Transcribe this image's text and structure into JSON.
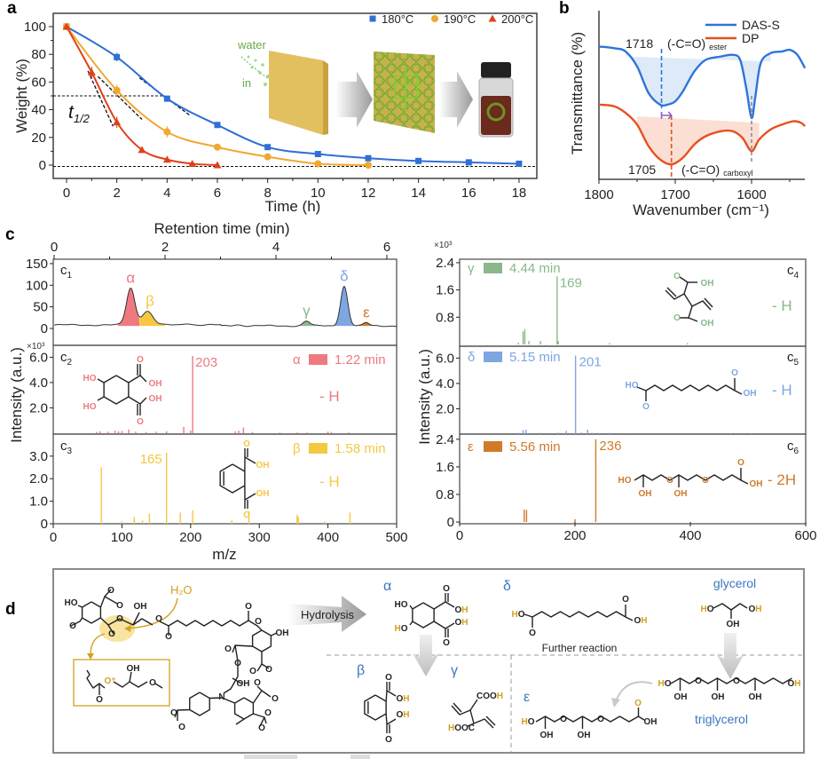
{
  "panel_labels": {
    "a": "a",
    "b": "b",
    "c": "c",
    "d": "d"
  },
  "chart_data": [
    {
      "id": "a",
      "type": "scatter",
      "xlabel": "Time (h)",
      "ylabel": "Weight (%)",
      "xlim": [
        -0.5,
        18.7
      ],
      "ylim": [
        -10,
        110
      ],
      "xticks": [
        "0",
        "2",
        "4",
        "6",
        "8",
        "10",
        "12",
        "14",
        "16",
        "18"
      ],
      "yticks": [
        "0",
        "20",
        "40",
        "60",
        "80",
        "100"
      ],
      "grid": false,
      "legend": "top-right",
      "reference_lines_y": [
        50,
        0
      ],
      "half_life_label": {
        "main": "t",
        "sub": "1/2"
      },
      "inset_labels": {
        "water": "water",
        "in": "in"
      },
      "series": [
        {
          "name": "180°C",
          "color": "#2f6fd6",
          "marker": "square",
          "x": [
            0,
            2,
            4,
            6,
            8,
            10,
            12,
            14,
            16,
            18
          ],
          "y": [
            100,
            78,
            48,
            29,
            13,
            8,
            5,
            3,
            2,
            1
          ],
          "err": [
            1,
            3,
            2,
            2,
            1.5,
            1,
            1,
            1,
            1,
            1
          ]
        },
        {
          "name": "190°C",
          "color": "#f0a830",
          "marker": "circle",
          "x": [
            0,
            2,
            4,
            6,
            8,
            10,
            12
          ],
          "y": [
            100,
            54,
            24,
            13,
            6,
            1,
            0
          ],
          "err": [
            1,
            4,
            4,
            2,
            2,
            1,
            1
          ]
        },
        {
          "name": "200°C",
          "color": "#e0401a",
          "marker": "triangle",
          "x": [
            0,
            1,
            2,
            3,
            4,
            5,
            6
          ],
          "y": [
            100,
            67,
            31,
            11,
            4,
            1,
            0
          ],
          "err": [
            1,
            4,
            4,
            2,
            1.5,
            1.5,
            2
          ]
        }
      ]
    },
    {
      "id": "b",
      "type": "line",
      "xlabel": "Wavenumber (cm⁻¹)",
      "ylabel": "Transmittance (%)",
      "xlim": [
        1800,
        1530
      ],
      "xticks": [
        "1800",
        "1700",
        "1600"
      ],
      "legend": "top-right",
      "series": [
        {
          "name": "DAS-S",
          "color": "#2f74d8",
          "x": [
            1800,
            1780,
            1765,
            1750,
            1735,
            1720,
            1710,
            1700,
            1690,
            1675,
            1660,
            1640,
            1625,
            1615,
            1607,
            1600,
            1595,
            1588,
            1575,
            1560,
            1550,
            1540,
            1530
          ],
          "y": [
            80,
            79,
            77,
            68,
            52,
            45,
            45,
            47,
            53,
            65,
            72,
            74,
            75,
            72,
            55,
            37,
            50,
            70,
            76,
            77,
            78,
            75,
            67
          ]
        },
        {
          "name": "DP",
          "color": "#e6501e",
          "x": [
            1800,
            1780,
            1765,
            1750,
            1735,
            1720,
            1705,
            1690,
            1675,
            1660,
            1640,
            1625,
            1612,
            1600,
            1590,
            1575,
            1560,
            1545,
            1535,
            1530
          ],
          "y": [
            45,
            44,
            40,
            33,
            20,
            12,
            9,
            13,
            21,
            26,
            29,
            29,
            25,
            17,
            24,
            30,
            33,
            35,
            34,
            32
          ]
        }
      ],
      "annotations": {
        "ester_peak": "1718",
        "ester_group": "(-C=O)",
        "ester_sub": "ester",
        "carboxyl_peak": "1705",
        "carboxyl_group": "(-C=O)",
        "carboxyl_sub": "carboxyl"
      }
    },
    {
      "id": "c1",
      "type": "line",
      "panel": "c1",
      "xlabel": "Retention time (min)",
      "xlim": [
        0,
        6.18
      ],
      "xticks": [
        "0",
        "2",
        "4",
        "6"
      ],
      "ylim": [
        0,
        150
      ],
      "yticks": [
        "0",
        "50",
        "100",
        "150"
      ],
      "baseline": 8,
      "peaks": [
        {
          "label": "α",
          "rt": 1.38,
          "height": 85,
          "color": "#ee7a80"
        },
        {
          "label": "β",
          "rt": 1.68,
          "height": 32,
          "color": "#f5c842"
        },
        {
          "label": "γ",
          "rt": 4.55,
          "height": 11,
          "color": "#8ab88a"
        },
        {
          "label": "δ",
          "rt": 5.23,
          "height": 92,
          "color": "#7ea6e0"
        },
        {
          "label": "ε",
          "rt": 5.63,
          "height": 7,
          "color": "#d07a2a"
        }
      ]
    },
    {
      "id": "c2",
      "type": "bar",
      "panel": "c2",
      "peak": "α",
      "time": "1.22 min",
      "color": "#ee7a80",
      "xlim": [
        0,
        500
      ],
      "ylim": [
        0,
        6.8
      ],
      "yticks": [
        "2.0",
        "4.0",
        "6.0"
      ],
      "multiplier": "×10³",
      "base_peak_label": "203",
      "adduct": "- H",
      "mz": [
        63,
        68,
        80,
        90,
        95,
        100,
        110,
        120,
        135,
        150,
        165,
        190,
        200,
        203,
        265,
        270,
        277,
        290,
        330,
        355,
        370,
        400,
        405,
        430
      ],
      "intensity": [
        0.1,
        0.15,
        0.12,
        0.2,
        0.15,
        0.18,
        0.3,
        0.12,
        0.1,
        0.12,
        0.15,
        0.5,
        0.2,
        6.1,
        0.15,
        0.2,
        0.45,
        0.1,
        0.05,
        0.05,
        0.05,
        0.12,
        0.1,
        0.05
      ]
    },
    {
      "id": "c3",
      "type": "bar",
      "panel": "c3",
      "peak": "β",
      "time": "1.58 min",
      "color": "#f5c842",
      "xlim": [
        0,
        500
      ],
      "ylim": [
        0,
        3.9
      ],
      "yticks": [
        "0",
        "1.0",
        "2.0",
        "3.0"
      ],
      "base_peak_label": "165",
      "adduct": "- H",
      "xlabel": "m/z",
      "xticks": [
        "0",
        "100",
        "200",
        "300",
        "400",
        "500"
      ],
      "mz": [
        70,
        100,
        118,
        130,
        140,
        165,
        185,
        203,
        260,
        285,
        355,
        357,
        395,
        432
      ],
      "intensity": [
        2.5,
        0.1,
        0.3,
        0.15,
        0.45,
        3.15,
        0.5,
        0.6,
        0.15,
        0.55,
        0.4,
        0.3,
        0.1,
        0.5
      ]
    },
    {
      "id": "c4",
      "type": "bar",
      "panel": "c4",
      "peak": "γ",
      "time": "4.44 min",
      "color": "#8ab88a",
      "xlim": [
        0,
        600
      ],
      "ylim": [
        0,
        2.45
      ],
      "yticks": [
        "0.8",
        "1.6",
        "2.4"
      ],
      "multiplier": "×10³",
      "base_peak_label": "169",
      "adduct": "- H",
      "mz": [
        102,
        110,
        113,
        120,
        140,
        169,
        171,
        260,
        395
      ],
      "intensity": [
        0.05,
        0.38,
        0.45,
        0.1,
        0.1,
        2.0,
        0.1,
        0.04,
        0.04
      ]
    },
    {
      "id": "c5",
      "type": "bar",
      "panel": "c5",
      "peak": "δ",
      "time": "5.15 min",
      "color": "#7ea6e0",
      "xlim": [
        0,
        600
      ],
      "ylim": [
        0,
        6.8
      ],
      "yticks": [
        "2.0",
        "4.0",
        "6.0"
      ],
      "base_peak_label": "201",
      "adduct": "- H",
      "mz": [
        102,
        110,
        115,
        140,
        170,
        185,
        201,
        212,
        222,
        230,
        240,
        260,
        290,
        470,
        505
      ],
      "intensity": [
        0.1,
        0.3,
        0.35,
        0.1,
        0.12,
        0.25,
        6.2,
        0.12,
        0.35,
        0.1,
        0.1,
        0.1,
        0.08,
        0.05,
        0.05
      ]
    },
    {
      "id": "c6",
      "type": "bar",
      "panel": "c6",
      "peak": "ε",
      "time": "5.56 min",
      "color": "#d07a2a",
      "xlim": [
        0,
        600
      ],
      "ylim": [
        0,
        2.5
      ],
      "yticks": [
        "0",
        "0.8",
        "1.6",
        "2.4"
      ],
      "base_peak_label": "236",
      "adduct": "- 2H",
      "xlabel": "m/z",
      "xticks": [
        "0",
        "200",
        "400",
        "600"
      ],
      "mz": [
        112,
        116,
        200,
        236
      ],
      "intensity": [
        0.36,
        0.35,
        0.08,
        2.4
      ]
    }
  ],
  "panel_c": {
    "ylabel": "Intensity (a.u.)",
    "subpanels": {
      "c1": "c",
      "c2": "c",
      "c3": "c",
      "c4": "c",
      "c5": "c",
      "c6": "c"
    },
    "subpanel_index": {
      "c1": "1",
      "c2": "2",
      "c3": "3",
      "c4": "4",
      "c5": "5",
      "c6": "6"
    },
    "structures": {
      "alpha": [
        "HO",
        "HO",
        "O",
        "OH",
        "OH",
        "O"
      ],
      "beta": [
        "O",
        "OH",
        "OH",
        "O"
      ],
      "gamma": [
        "O",
        "OH",
        "O",
        "OH"
      ],
      "delta": [
        "HO",
        "O",
        "O",
        "OH"
      ],
      "epsilon": [
        "HO",
        "OH",
        "O",
        "OH",
        "O",
        "O",
        "OH"
      ]
    }
  },
  "scheme": {
    "water": "H₂O",
    "hydrolysis": "Hydrolysis",
    "further_reaction": "Further reaction",
    "glycerol": "glycerol",
    "triglycerol": "triglycerol",
    "greek": {
      "alpha": "α",
      "beta": "β",
      "gamma": "γ",
      "delta": "δ",
      "epsilon": "ε"
    },
    "highlight_color": "#d4a020",
    "label_color": "#3a78c0",
    "polymer_atoms": [
      "HO",
      "O",
      "O",
      "O",
      "O",
      "O",
      "OH",
      "O",
      "O",
      "O",
      "O",
      "OH",
      "O",
      "O",
      "O",
      "O",
      "OH",
      "N",
      "O",
      "O",
      "O",
      "O",
      "O",
      "O"
    ],
    "intermediate_atoms": [
      "O⁺",
      "OH",
      "O",
      "O"
    ],
    "alpha_atoms": [
      "HO",
      "HO",
      "O",
      "OH",
      "OH",
      "O"
    ],
    "beta_atoms": [
      "O",
      "OH",
      "OH",
      "O"
    ],
    "gamma_atoms": [
      "COOH",
      "HOOC"
    ],
    "delta_atoms": [
      "HO",
      "O",
      "O",
      "OH"
    ],
    "glycerol_atoms": [
      "HO",
      "OH",
      "OH"
    ],
    "triglycerol_atoms": [
      "HO",
      "OH",
      "O",
      "OH",
      "O",
      "OH",
      "OH"
    ],
    "epsilon_atoms": [
      "HO",
      "OH",
      "O",
      "OH",
      "O",
      "O",
      "OH"
    ]
  }
}
